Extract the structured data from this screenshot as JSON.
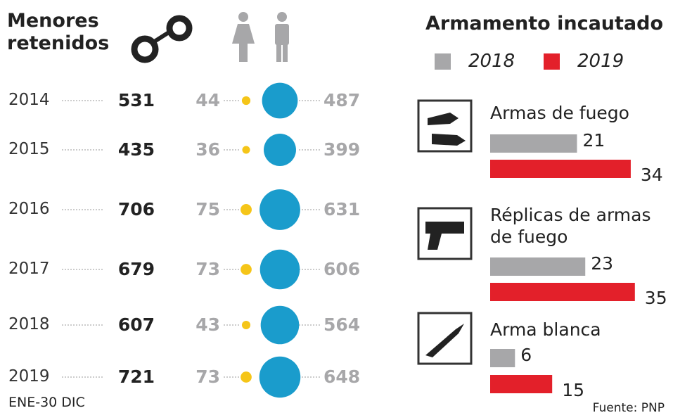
{
  "chart_data": [
    {
      "type": "bubble",
      "title": "Menores retenidos",
      "categories": [
        "2014",
        "2015",
        "2016",
        "2017",
        "2018",
        "2019"
      ],
      "totals": [
        531,
        435,
        706,
        679,
        607,
        721
      ],
      "series": [
        {
          "color": "#f5c518",
          "values": [
            44,
            36,
            75,
            73,
            43,
            73
          ]
        },
        {
          "color": "#1a9ccc",
          "values": [
            487,
            399,
            631,
            606,
            564,
            648
          ]
        }
      ],
      "note": "ENE-30 DIC"
    },
    {
      "type": "bar",
      "title": "Armamento incautado",
      "categories": [
        "Armas de fuego",
        "Réplicas de armas de fuego",
        "Arma blanca"
      ],
      "series": [
        {
          "name": "2018",
          "color": "#a7a7a9",
          "values": [
            21,
            23,
            6
          ]
        },
        {
          "name": "2019",
          "color": "#e3202a",
          "values": [
            34,
            35,
            15
          ]
        }
      ],
      "source": "Fuente: PNP"
    }
  ]
}
